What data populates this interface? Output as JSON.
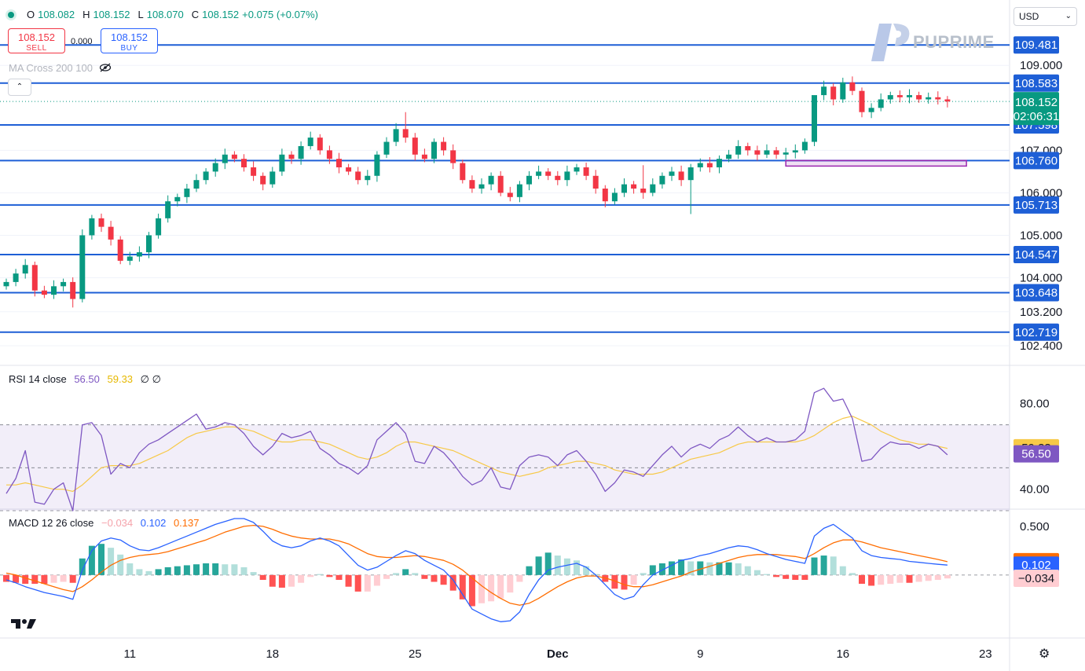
{
  "ohlc": {
    "o_label": "O",
    "o": "108.082",
    "h_label": "H",
    "h": "108.152",
    "l_label": "L",
    "l": "108.070",
    "c_label": "C",
    "c": "108.152",
    "change": "+0.075 (+0.07%)"
  },
  "trade": {
    "sell_price": "108.152",
    "sell_label": "SELL",
    "spread": "0.000",
    "buy_price": "108.152",
    "buy_label": "BUY"
  },
  "indicator": {
    "ma_label": "MA Cross 200 100"
  },
  "currency": {
    "selected": "USD"
  },
  "brand": {
    "name": "PUPRIME"
  },
  "colors": {
    "up": "#089981",
    "down": "#f23645",
    "level_line": "#1e5fd6",
    "rsi_line": "#7e57c2",
    "rsi_ma": "#f7c948",
    "macd_line": "#2962ff",
    "signal_line": "#ff6d00"
  },
  "chart_data": [
    {
      "type": "candlestick",
      "price_scale": {
        "min": 102.4,
        "max": 109.8
      },
      "y_ticks": [
        "109.000",
        "107.000",
        "106.000",
        "105.000",
        "104.000",
        "103.200",
        "102.400"
      ],
      "x_ticks": [
        {
          "label": "11",
          "bar": 13
        },
        {
          "label": "18",
          "bar": 28
        },
        {
          "label": "25",
          "bar": 43
        },
        {
          "label": "Dec",
          "bar": 58
        },
        {
          "label": "9",
          "bar": 73
        },
        {
          "label": "16",
          "bar": 88
        },
        {
          "label": "23",
          "bar": 103
        }
      ],
      "levels": [
        "109.481",
        "108.583",
        "107.598",
        "106.760",
        "105.713",
        "104.547",
        "103.648",
        "102.719"
      ],
      "last_price": "108.152",
      "countdown": "02:06:31",
      "zone": {
        "from_bar": 82,
        "to_bar": 101,
        "low": 106.63,
        "high": 106.76
      },
      "closes": [
        103.9,
        104.1,
        104.3,
        103.7,
        103.6,
        103.8,
        103.9,
        103.5,
        105.0,
        105.4,
        105.2,
        104.9,
        104.4,
        104.5,
        104.6,
        105.0,
        105.4,
        105.8,
        105.9,
        106.1,
        106.3,
        106.5,
        106.7,
        106.9,
        106.8,
        106.6,
        106.4,
        106.2,
        106.5,
        106.9,
        106.8,
        107.1,
        107.3,
        107.0,
        106.8,
        106.6,
        106.5,
        106.3,
        106.4,
        106.9,
        107.2,
        107.5,
        107.3,
        106.9,
        106.8,
        107.2,
        107.0,
        106.7,
        106.3,
        106.1,
        106.2,
        106.4,
        106.0,
        105.9,
        106.2,
        106.4,
        106.5,
        106.4,
        106.3,
        106.5,
        106.6,
        106.4,
        106.1,
        105.8,
        106.0,
        106.2,
        106.1,
        106.0,
        106.2,
        106.4,
        106.5,
        106.3,
        106.6,
        106.7,
        106.6,
        106.8,
        106.9,
        107.1,
        107.0,
        106.9,
        107.0,
        106.9,
        106.95,
        107.0,
        107.2,
        108.3,
        108.5,
        108.2,
        108.6,
        108.4,
        107.9,
        108.0,
        108.2,
        108.3,
        108.25,
        108.3,
        108.2,
        108.25,
        108.2,
        108.15
      ],
      "highs_extra": {
        "42": 107.9,
        "67": 106.65,
        "85": 107.3
      },
      "lows_extra": {
        "7": 103.3,
        "72": 105.5
      }
    },
    {
      "type": "line",
      "title": "RSI 14 close",
      "rsi_value": "56.50",
      "rsi_ma_value": "59.33",
      "extra": "∅ ∅",
      "y_ticks": [
        "80.00",
        "40.00"
      ],
      "range": [
        30,
        90
      ],
      "bands": [
        70,
        50,
        30
      ],
      "series": [
        {
          "name": "RSI",
          "values": [
            38,
            45,
            58,
            34,
            33,
            40,
            43,
            30,
            70,
            71,
            65,
            47,
            52,
            50,
            57,
            61,
            63,
            66,
            69,
            72,
            75,
            68,
            69,
            71,
            70,
            66,
            60,
            56,
            60,
            66,
            64,
            65,
            67,
            59,
            56,
            52,
            50,
            47,
            51,
            63,
            67,
            71,
            66,
            53,
            52,
            60,
            57,
            52,
            46,
            42,
            44,
            50,
            41,
            40,
            51,
            55,
            56,
            55,
            51,
            56,
            58,
            53,
            47,
            39,
            43,
            49,
            48,
            46,
            51,
            56,
            60,
            55,
            59,
            61,
            59,
            63,
            65,
            69,
            65,
            62,
            64,
            62,
            62,
            63,
            67,
            85,
            87,
            81,
            82,
            73,
            53,
            54,
            59,
            62,
            61,
            61,
            59,
            61,
            60,
            56
          ]
        },
        {
          "name": "MA",
          "values": [
            42,
            42,
            43,
            42,
            41,
            40,
            40,
            39,
            42,
            46,
            50,
            51,
            51,
            51,
            52,
            54,
            56,
            58,
            61,
            64,
            66,
            67,
            68,
            69,
            69,
            68,
            67,
            65,
            63,
            62,
            62,
            63,
            63,
            62,
            61,
            59,
            57,
            55,
            54,
            55,
            57,
            60,
            62,
            62,
            61,
            60,
            59,
            58,
            56,
            54,
            52,
            50,
            48,
            47,
            46,
            47,
            48,
            50,
            51,
            52,
            53,
            53,
            52,
            51,
            49,
            48,
            47,
            47,
            47,
            48,
            50,
            52,
            54,
            55,
            56,
            57,
            59,
            61,
            62,
            62,
            62,
            62,
            62,
            62,
            63,
            65,
            68,
            71,
            73,
            74,
            72,
            70,
            67,
            65,
            63,
            62,
            61,
            61,
            60,
            59
          ]
        }
      ]
    },
    {
      "type": "bar",
      "title": "MACD 12 26 close",
      "hist_value": "−0.034",
      "macd_value": "0.102",
      "signal_value": "0.137",
      "y_ticks": [
        "0.500"
      ],
      "range": [
        -0.55,
        0.62
      ],
      "series": [
        {
          "name": "MACD",
          "values": [
            -0.05,
            -0.08,
            -0.12,
            -0.15,
            -0.18,
            -0.2,
            -0.22,
            -0.25,
            0.05,
            0.25,
            0.35,
            0.38,
            0.36,
            0.3,
            0.26,
            0.25,
            0.28,
            0.32,
            0.36,
            0.4,
            0.44,
            0.48,
            0.52,
            0.55,
            0.58,
            0.58,
            0.54,
            0.45,
            0.35,
            0.3,
            0.28,
            0.3,
            0.35,
            0.38,
            0.35,
            0.3,
            0.2,
            0.1,
            0.05,
            0.08,
            0.14,
            0.2,
            0.25,
            0.22,
            0.15,
            0.1,
            0.05,
            -0.05,
            -0.2,
            -0.35,
            -0.4,
            -0.45,
            -0.48,
            -0.47,
            -0.38,
            -0.2,
            -0.05,
            0.05,
            0.08,
            0.1,
            0.12,
            0.08,
            0.0,
            -0.1,
            -0.2,
            -0.25,
            -0.22,
            -0.1,
            0.0,
            0.05,
            0.1,
            0.15,
            0.17,
            0.2,
            0.22,
            0.25,
            0.28,
            0.3,
            0.29,
            0.26,
            0.22,
            0.19,
            0.16,
            0.14,
            0.12,
            0.4,
            0.48,
            0.52,
            0.45,
            0.38,
            0.25,
            0.2,
            0.18,
            0.17,
            0.16,
            0.14,
            0.13,
            0.12,
            0.11,
            0.102
          ]
        },
        {
          "name": "Signal",
          "values": [
            0.02,
            0.0,
            -0.03,
            -0.06,
            -0.09,
            -0.12,
            -0.15,
            -0.17,
            -0.12,
            -0.05,
            0.03,
            0.1,
            0.15,
            0.18,
            0.2,
            0.21,
            0.22,
            0.24,
            0.27,
            0.3,
            0.33,
            0.36,
            0.4,
            0.44,
            0.47,
            0.5,
            0.51,
            0.5,
            0.47,
            0.43,
            0.4,
            0.38,
            0.37,
            0.37,
            0.37,
            0.35,
            0.32,
            0.27,
            0.22,
            0.19,
            0.18,
            0.18,
            0.19,
            0.2,
            0.19,
            0.17,
            0.15,
            0.11,
            0.05,
            -0.03,
            -0.11,
            -0.18,
            -0.24,
            -0.29,
            -0.31,
            -0.29,
            -0.24,
            -0.18,
            -0.12,
            -0.07,
            -0.03,
            -0.01,
            -0.01,
            -0.03,
            -0.06,
            -0.1,
            -0.12,
            -0.12,
            -0.1,
            -0.07,
            -0.04,
            -0.01,
            0.03,
            0.06,
            0.09,
            0.12,
            0.15,
            0.18,
            0.2,
            0.21,
            0.21,
            0.21,
            0.2,
            0.19,
            0.17,
            0.22,
            0.28,
            0.33,
            0.36,
            0.36,
            0.34,
            0.31,
            0.28,
            0.26,
            0.24,
            0.22,
            0.2,
            0.18,
            0.16,
            0.137
          ]
        }
      ]
    }
  ]
}
